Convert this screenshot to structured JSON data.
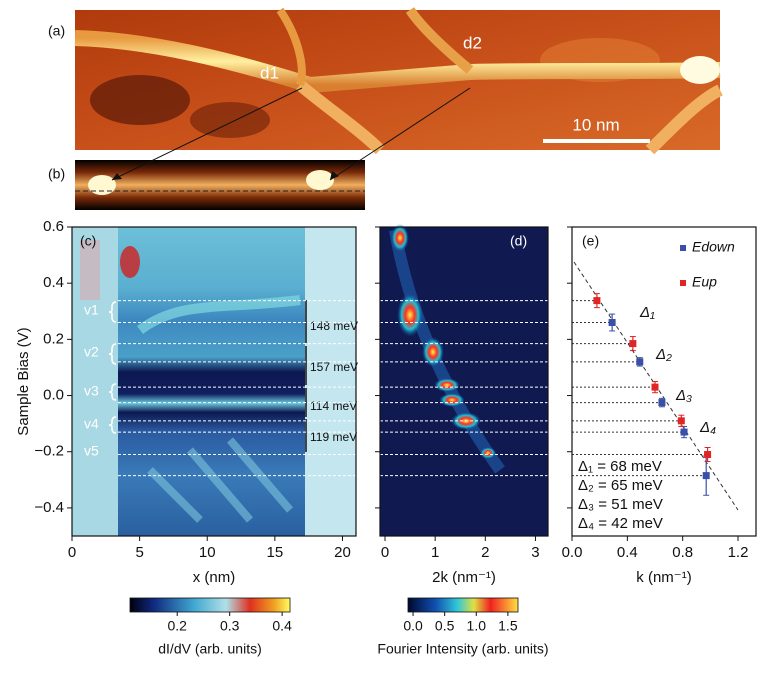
{
  "figure": {
    "panel_labels": [
      "(a)",
      "(b)",
      "(c)",
      "(d)",
      "(e)"
    ],
    "image_labels": [
      "d1",
      "d2"
    ],
    "scale_bar": "10 nm",
    "state_labels": [
      "v1",
      "v2",
      "v3",
      "v4",
      "v5"
    ],
    "gap_labels": [
      "148 meV",
      "157 meV",
      "114 meV",
      "119 meV"
    ]
  },
  "chart_data": [
    {
      "type": "heatmap",
      "xlabel": "x (nm)",
      "ylabel": "Sample Bias (V)",
      "xlim": [
        0,
        21
      ],
      "xticks": [
        0,
        5,
        10,
        15,
        20
      ],
      "ylim": [
        -0.5,
        0.6
      ],
      "yticks": [
        {
          "value": -0.4,
          "label": "−0.4"
        },
        {
          "value": -0.2,
          "label": "−0.2"
        },
        {
          "value": 0,
          "label": "0.0"
        },
        0.2,
        0.4,
        0.6
      ],
      "colorbar": {
        "label": "dI/dV (arb. units)",
        "lim": [
          0.11,
          0.415
        ],
        "ticks": [
          0.2,
          0.3,
          0.4
        ]
      }
    },
    {
      "type": "heatmap",
      "xlabel": "2k (nm⁻¹)",
      "xlim": [
        -0.1,
        3.25
      ],
      "xticks": [
        0,
        1,
        2,
        3
      ],
      "ylim": [
        -0.5,
        0.6
      ],
      "yticks": [
        -0.4,
        -0.2,
        0,
        0.2,
        0.4,
        0.6
      ],
      "colorbar": {
        "label": "Fourier Intensity (arb. units)",
        "lim": [
          -0.08,
          1.66
        ],
        "ticks": [
          {
            "value": 0,
            "label": "0.0"
          },
          0.5,
          {
            "value": 1,
            "label": "1.0"
          },
          1.5
        ]
      }
    },
    {
      "type": "scatter",
      "xlabel": "k (nm⁻¹)",
      "xlim": [
        0,
        1.33
      ],
      "xticks": [
        {
          "value": 0,
          "label": "0.0"
        },
        0.4,
        0.8,
        1.2
      ],
      "ylim": [
        -0.5,
        0.6
      ],
      "yticks": [
        -0.4,
        -0.2,
        0,
        0.2,
        0.4,
        0.6
      ],
      "series": [
        {
          "name": "Edown",
          "color": "#3a50a8",
          "x": [
            0.29,
            0.49,
            0.65,
            0.81,
            0.97
          ],
          "values": [
            0.26,
            0.12,
            -0.025,
            -0.13,
            -0.285
          ],
          "errors": [
            0.03,
            0.015,
            0.015,
            0.02,
            0.07
          ]
        },
        {
          "name": "Eup",
          "color": "#e02525",
          "x": [
            0.18,
            0.44,
            0.6,
            0.79,
            0.98
          ],
          "values": [
            0.338,
            0.185,
            0.03,
            -0.09,
            -0.21
          ],
          "errors": [
            0.025,
            0.025,
            0.02,
            0.02,
            0.025
          ]
        }
      ],
      "delta_labels": [
        "Δ₁",
        "Δ₂",
        "Δ₃",
        "Δ₄"
      ],
      "annotations": [
        "Δ₁ = 68 meV",
        "Δ₂ = 65 meV",
        "Δ₃ = 51 meV",
        "Δ₄ = 42 meV"
      ]
    }
  ]
}
